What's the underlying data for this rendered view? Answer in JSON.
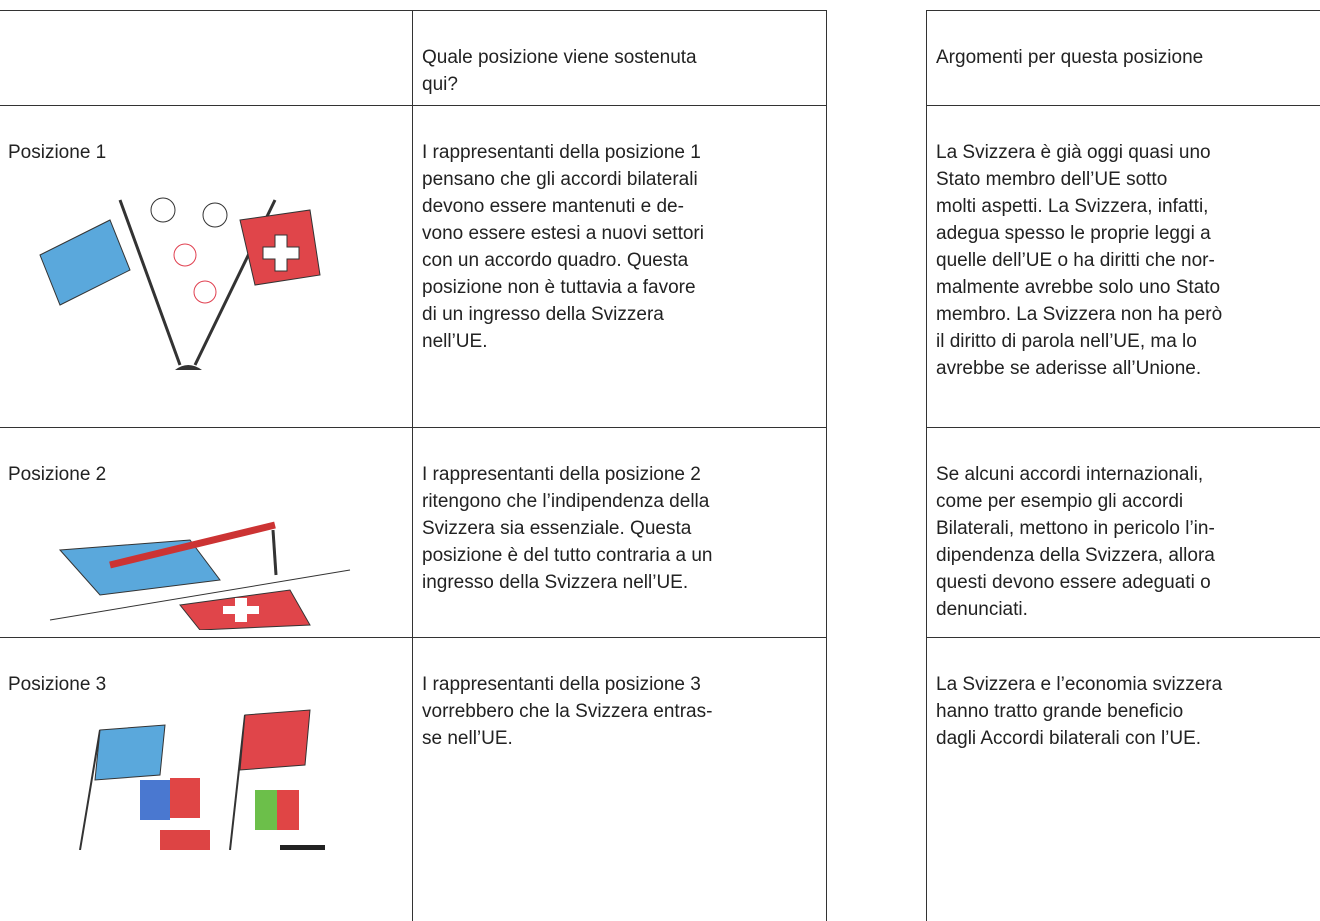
{
  "table": {
    "header": {
      "position": [
        "Quale posizione viene sostenuta",
        "qui?"
      ],
      "arguments": [
        "Argomenti per questa posizione"
      ]
    },
    "rows": [
      {
        "label": "Posizione 1",
        "position": [
          "I rappresentanti della posizione 1",
          "pensano che gli accordi bilaterali",
          "devono essere mantenuti e de-",
          "vono essere estesi a nuovi settori",
          "con un accordo quadro. Questa",
          "posizione non è tuttavia a favore",
          "di un ingresso della Svizzera",
          "nell’UE."
        ],
        "arguments": [
          "La Svizzera è già oggi quasi uno",
          "Stato membro dell’UE sotto",
          "molti aspetti. La Svizzera, infatti,",
          "adegua spesso le proprie leggi a",
          "quelle dell’UE o ha diritti che nor-",
          "malmente avrebbe solo uno Stato",
          "membro. La Svizzera non ha però",
          "il diritto di parola nell’UE, ma lo",
          "avrebbe se aderisse all’Unione."
        ]
      },
      {
        "label": "Posizione 2",
        "position": [
          "I rappresentanti della posizione 2",
          "ritengono che l’indipendenza della",
          "Svizzera sia essenziale. Questa",
          "posizione è del tutto contraria a un",
          "ingresso della Svizzera nell’UE."
        ],
        "arguments": [
          "Se alcuni accordi internazionali,",
          "come per esempio gli accordi",
          "Bilaterali, mettono in pericolo l’in-",
          "dipendenza della Svizzera, allora",
          "questi devono essere adeguati o",
          "denunciati."
        ]
      },
      {
        "label": "Posizione 3",
        "position": [
          "I rappresentanti della posizione 3",
          "vorrebbero che la Svizzera entras-",
          "se nell’UE."
        ],
        "arguments": [
          "La Svizzera e l’economia svizzera",
          "hanno tratto grande beneficio",
          "dagli Accordi bilaterali con l’UE."
        ]
      }
    ]
  }
}
